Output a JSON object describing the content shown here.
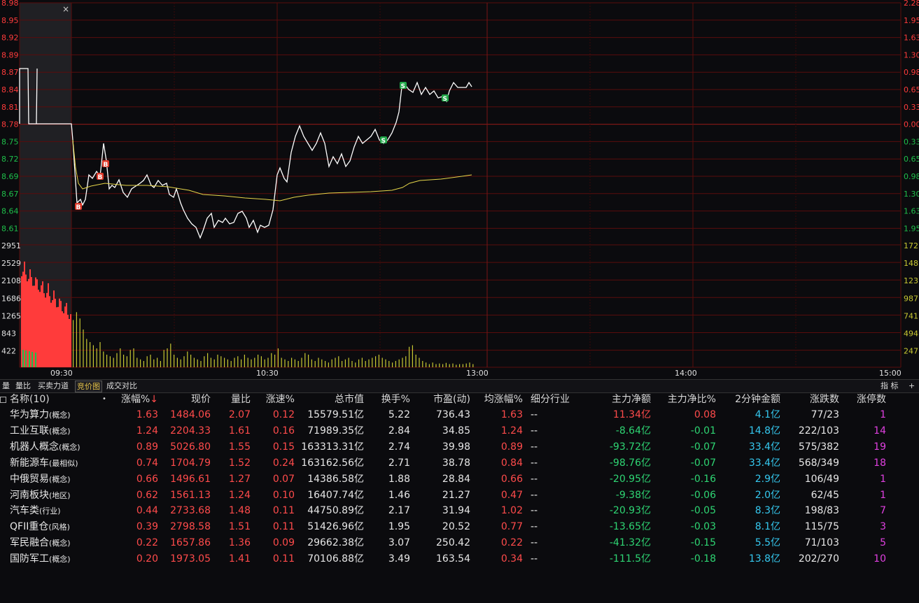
{
  "chart": {
    "price_ticks": [
      "8.98",
      "8.95",
      "8.92",
      "8.89",
      "8.87",
      "8.84",
      "8.81",
      "8.78",
      "8.75",
      "8.72",
      "8.69",
      "8.67",
      "8.64",
      "8.61"
    ],
    "pct_ticks": [
      "2.28",
      "1.95",
      "1.63",
      "1.30",
      "0.98",
      "0.65",
      "0.33",
      "0.00",
      "0.33",
      "0.65",
      "0.98",
      "1.30",
      "1.63",
      "1.95"
    ],
    "vol_ticks_left": [
      "2951",
      "2529",
      "2108",
      "1686",
      "1265",
      "843",
      "422"
    ],
    "vol_ticks_right": [
      "172",
      "148",
      "123",
      "987",
      "741",
      "494",
      "247"
    ],
    "time_labels": [
      "09:30",
      "10:30",
      "13:00",
      "14:00",
      "15:00"
    ],
    "close_mark": "×",
    "trade_marks": [
      "B",
      "B",
      "B",
      "S",
      "S",
      "S"
    ],
    "colors": {
      "up": "#ff3b3b",
      "down": "#1fbf4a",
      "line": "#ffffff",
      "avg": "#e6d64a",
      "grid": "#5a0c0c",
      "volume": "#c8c832"
    }
  },
  "tabs": [
    "量",
    "量比",
    "买卖力道",
    "竞价图",
    "成交对比"
  ],
  "active_tab": "竞价图",
  "tabs_right": {
    "indicator": "指 标",
    "add": "+"
  },
  "table": {
    "headers": [
      "名称(10)",
      "•",
      "涨幅%",
      "现价",
      "量比",
      "涨速%",
      "总市值",
      "换手%",
      "市盈(动)",
      "均涨幅%",
      "细分行业",
      "主力净额",
      "主力净比%",
      "2分钟金额",
      "涨跌数",
      "涨停数"
    ],
    "sort_arrow": "↓",
    "rows": [
      {
        "name": "华为算力",
        "tag": "(概念)",
        "chg": "1.63",
        "price": "1484.06",
        "lb": "2.07",
        "speed": "0.12",
        "mcap": "15579.51亿",
        "turn": "5.22",
        "pe": "736.43",
        "avg": "1.63",
        "ind": "--",
        "net": "11.34亿",
        "netpct": "0.08",
        "amt2": "4.1亿",
        "updown": "77/23",
        "limit": "1"
      },
      {
        "name": "工业互联",
        "tag": "(概念)",
        "chg": "1.24",
        "price": "2204.33",
        "lb": "1.61",
        "speed": "0.16",
        "mcap": "71989.35亿",
        "turn": "2.84",
        "pe": "34.85",
        "avg": "1.24",
        "ind": "--",
        "net": "-8.64亿",
        "netpct": "-0.01",
        "amt2": "14.8亿",
        "updown": "222/103",
        "limit": "14"
      },
      {
        "name": "机器人概念",
        "tag": "(概念)",
        "chg": "0.89",
        "price": "5026.80",
        "lb": "1.55",
        "speed": "0.15",
        "mcap": "163313.31亿",
        "turn": "2.74",
        "pe": "39.98",
        "avg": "0.89",
        "ind": "--",
        "net": "-93.72亿",
        "netpct": "-0.07",
        "amt2": "33.4亿",
        "updown": "575/382",
        "limit": "19"
      },
      {
        "name": "新能源车",
        "tag": "(最相似)",
        "chg": "0.74",
        "price": "1704.79",
        "lb": "1.52",
        "speed": "0.24",
        "mcap": "163162.56亿",
        "turn": "2.71",
        "pe": "38.78",
        "avg": "0.84",
        "ind": "--",
        "net": "-98.76亿",
        "netpct": "-0.07",
        "amt2": "33.4亿",
        "updown": "568/349",
        "limit": "18"
      },
      {
        "name": "中俄贸易",
        "tag": "(概念)",
        "chg": "0.66",
        "price": "1496.61",
        "lb": "1.27",
        "speed": "0.07",
        "mcap": "14386.58亿",
        "turn": "1.88",
        "pe": "28.84",
        "avg": "0.66",
        "ind": "--",
        "net": "-20.95亿",
        "netpct": "-0.16",
        "amt2": "2.9亿",
        "updown": "106/49",
        "limit": "1"
      },
      {
        "name": "河南板块",
        "tag": "(地区)",
        "chg": "0.62",
        "price": "1561.13",
        "lb": "1.24",
        "speed": "0.10",
        "mcap": "16407.74亿",
        "turn": "1.46",
        "pe": "21.27",
        "avg": "0.47",
        "ind": "--",
        "net": "-9.38亿",
        "netpct": "-0.06",
        "amt2": "2.0亿",
        "updown": "62/45",
        "limit": "1"
      },
      {
        "name": "汽车类",
        "tag": "(行业)",
        "chg": "0.44",
        "price": "2733.68",
        "lb": "1.48",
        "speed": "0.11",
        "mcap": "44750.89亿",
        "turn": "2.17",
        "pe": "31.94",
        "avg": "1.02",
        "ind": "--",
        "net": "-20.93亿",
        "netpct": "-0.05",
        "amt2": "8.3亿",
        "updown": "198/83",
        "limit": "7"
      },
      {
        "name": "QFII重仓",
        "tag": "(风格)",
        "chg": "0.39",
        "price": "2798.58",
        "lb": "1.51",
        "speed": "0.11",
        "mcap": "51426.96亿",
        "turn": "1.95",
        "pe": "20.52",
        "avg": "0.77",
        "ind": "--",
        "net": "-13.65亿",
        "netpct": "-0.03",
        "amt2": "8.1亿",
        "updown": "115/75",
        "limit": "3"
      },
      {
        "name": "军民融合",
        "tag": "(概念)",
        "chg": "0.22",
        "price": "1657.86",
        "lb": "1.36",
        "speed": "0.09",
        "mcap": "29662.38亿",
        "turn": "3.07",
        "pe": "250.42",
        "avg": "0.22",
        "ind": "--",
        "net": "-41.32亿",
        "netpct": "-0.15",
        "amt2": "5.5亿",
        "updown": "71/103",
        "limit": "5"
      },
      {
        "name": "国防军工",
        "tag": "(概念)",
        "chg": "0.20",
        "price": "1973.05",
        "lb": "1.41",
        "speed": "0.11",
        "mcap": "70106.88亿",
        "turn": "3.49",
        "pe": "163.54",
        "avg": "0.34",
        "ind": "--",
        "net": "-111.5亿",
        "netpct": "-0.18",
        "amt2": "13.8亿",
        "updown": "202/270",
        "limit": "10"
      }
    ]
  }
}
